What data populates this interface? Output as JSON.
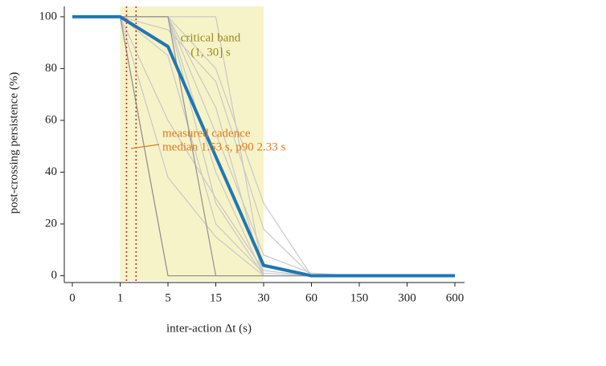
{
  "chart_data": {
    "type": "line",
    "xlabel": "inter-action Δt (s)",
    "ylabel": "post-crossing persistence (%)",
    "categories": [
      0,
      1,
      5,
      15,
      30,
      60,
      150,
      300,
      600
    ],
    "ylim": [
      -2,
      104
    ],
    "yticks": [
      0,
      20,
      40,
      60,
      80,
      100
    ],
    "band": {
      "range": [
        1,
        30
      ],
      "color": "#f7f3c8",
      "label_lines": [
        "critical band",
        "(1, 30] s"
      ],
      "label_color": "#9a8a1a"
    },
    "cadence": {
      "values": [
        1.53,
        2.33
      ],
      "color": "#c0392b",
      "label_lines": [
        "measured cadence",
        "median 1.53 s, p90 2.33 s"
      ],
      "label_color": "#e07b20"
    },
    "series": [
      {
        "color": "#c8c8c8",
        "values": [
          100,
          100,
          100,
          100,
          0,
          0,
          0,
          0,
          0
        ]
      },
      {
        "color": "#c8c8c8",
        "values": [
          100,
          100,
          100,
          65,
          0,
          0,
          0,
          0,
          0
        ]
      },
      {
        "color": "#c8c8c8",
        "values": [
          100,
          100,
          100,
          40,
          0,
          0,
          0,
          0,
          0
        ]
      },
      {
        "color": "#c8c8c8",
        "values": [
          100,
          100,
          38,
          15,
          0,
          0,
          0,
          0,
          0
        ]
      },
      {
        "color": "#c8c8c8",
        "values": [
          100,
          100,
          100,
          28,
          0,
          0,
          0,
          0,
          0
        ]
      },
      {
        "color": "#c8c8c8",
        "values": [
          100,
          100,
          100,
          80,
          28,
          0,
          0,
          0,
          0
        ]
      },
      {
        "color": "#c8c8c8",
        "values": [
          100,
          100,
          95,
          75,
          18,
          0,
          0,
          0,
          0
        ]
      },
      {
        "color": "#c8c8c8",
        "values": [
          100,
          100,
          100,
          55,
          8,
          1,
          0,
          0,
          0
        ]
      },
      {
        "color": "#c8c8c8",
        "values": [
          100,
          100,
          60,
          30,
          2,
          0,
          0,
          0,
          0
        ]
      },
      {
        "color": "#c8c8c8",
        "values": [
          100,
          100,
          85,
          20,
          1,
          0,
          0,
          0,
          0
        ]
      },
      {
        "color": "#c8c8c8",
        "values": [
          100,
          100,
          0,
          0,
          0,
          0,
          0,
          0,
          0
        ]
      },
      {
        "color": "#909090",
        "values": [
          100,
          100,
          100,
          0,
          0,
          0,
          0,
          0,
          0
        ]
      },
      {
        "color": "#909090",
        "values": [
          100,
          100,
          0,
          0,
          0,
          0,
          0,
          0,
          0
        ]
      },
      {
        "color": "#1f77b4",
        "width": 4,
        "values": [
          100,
          100,
          88.5,
          46,
          4,
          0,
          0,
          0,
          0
        ]
      }
    ]
  }
}
